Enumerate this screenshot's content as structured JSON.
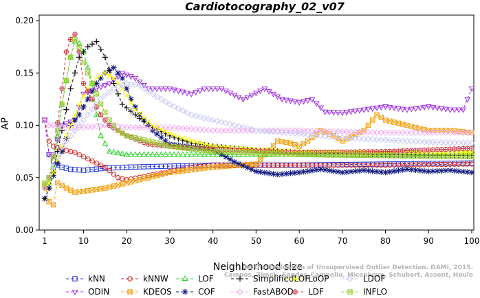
{
  "chart_data": {
    "type": "line",
    "title": "Cardiotocography_02_v07",
    "xlabel": "Neighborhood size",
    "ylabel": "AP",
    "xlim": [
      1,
      100
    ],
    "ylim": [
      0,
      0.2
    ],
    "xticks": [
      1,
      10,
      20,
      30,
      40,
      50,
      60,
      70,
      80,
      90,
      100
    ],
    "yticks": [
      0.0,
      0.05,
      0.1,
      0.15,
      0.2
    ],
    "ytick_labels": [
      "0.00",
      "0.05",
      "0.10",
      "0.15",
      "0.20"
    ],
    "grid": false,
    "legend_position": "bottom",
    "watermark": [
      "Campos, Zimek, Sander, Campello, Micenkova, Schubert, Assent, Houle",
      "On the Evaluation of Unsupervised Outlier Detection. DAMI, 2015."
    ],
    "series": [
      {
        "name": "kNN",
        "color": "#1f35d6",
        "marker": "square",
        "points": [
          [
            1,
            0.105
          ],
          [
            2,
            0.072
          ],
          [
            3,
            0.066
          ],
          [
            4,
            0.062
          ],
          [
            5,
            0.06
          ],
          [
            7,
            0.058
          ],
          [
            10,
            0.057
          ],
          [
            15,
            0.059
          ],
          [
            20,
            0.06
          ],
          [
            30,
            0.061
          ],
          [
            40,
            0.062
          ],
          [
            60,
            0.062
          ],
          [
            80,
            0.063
          ],
          [
            100,
            0.064
          ]
        ]
      },
      {
        "name": "ODIN",
        "color": "#9c2de0",
        "marker": "triangle-down",
        "points": [
          [
            1,
            0.105
          ],
          [
            2,
            0.072
          ],
          [
            3,
            0.072
          ],
          [
            5,
            0.1
          ],
          [
            8,
            0.105
          ],
          [
            10,
            0.13
          ],
          [
            13,
            0.135
          ],
          [
            16,
            0.14
          ],
          [
            19,
            0.15
          ],
          [
            22,
            0.145
          ],
          [
            25,
            0.135
          ],
          [
            30,
            0.135
          ],
          [
            35,
            0.13
          ],
          [
            38,
            0.135
          ],
          [
            42,
            0.135
          ],
          [
            47,
            0.125
          ],
          [
            52,
            0.135
          ],
          [
            56,
            0.125
          ],
          [
            60,
            0.122
          ],
          [
            63,
            0.125
          ],
          [
            66,
            0.113
          ],
          [
            70,
            0.112
          ],
          [
            75,
            0.115
          ],
          [
            80,
            0.118
          ],
          [
            85,
            0.115
          ],
          [
            90,
            0.118
          ],
          [
            95,
            0.115
          ],
          [
            98,
            0.115
          ],
          [
            100,
            0.135
          ]
        ]
      },
      {
        "name": "kNNW",
        "color": "#d42020",
        "marker": "circle",
        "points": [
          [
            1,
            0.105
          ],
          [
            2,
            0.085
          ],
          [
            3,
            0.08
          ],
          [
            5,
            0.077
          ],
          [
            8,
            0.074
          ],
          [
            10,
            0.07
          ],
          [
            15,
            0.06
          ],
          [
            18,
            0.05
          ],
          [
            20,
            0.048
          ],
          [
            25,
            0.052
          ],
          [
            30,
            0.056
          ],
          [
            35,
            0.06
          ],
          [
            40,
            0.062
          ],
          [
            60,
            0.062
          ],
          [
            80,
            0.062
          ],
          [
            100,
            0.063
          ]
        ]
      },
      {
        "name": "KDEOS",
        "color": "#f0a010",
        "marker": "square-x",
        "points": [
          [
            1,
            0.043
          ],
          [
            2,
            0.027
          ],
          [
            3,
            0.024
          ],
          [
            4,
            0.045
          ],
          [
            6,
            0.04
          ],
          [
            8,
            0.036
          ],
          [
            10,
            0.037
          ],
          [
            15,
            0.04
          ],
          [
            20,
            0.045
          ],
          [
            30,
            0.055
          ],
          [
            40,
            0.06
          ],
          [
            50,
            0.063
          ],
          [
            55,
            0.085
          ],
          [
            58,
            0.083
          ],
          [
            60,
            0.08
          ],
          [
            62,
            0.085
          ],
          [
            65,
            0.095
          ],
          [
            68,
            0.09
          ],
          [
            70,
            0.085
          ],
          [
            75,
            0.095
          ],
          [
            78,
            0.11
          ],
          [
            80,
            0.105
          ],
          [
            85,
            0.1
          ],
          [
            90,
            0.095
          ],
          [
            95,
            0.095
          ],
          [
            100,
            0.093
          ]
        ]
      },
      {
        "name": "LOF",
        "color": "#2fd02f",
        "marker": "triangle-up",
        "points": [
          [
            1,
            0.043
          ],
          [
            2,
            0.045
          ],
          [
            3,
            0.06
          ],
          [
            5,
            0.12
          ],
          [
            7,
            0.165
          ],
          [
            8,
            0.18
          ],
          [
            9,
            0.178
          ],
          [
            10,
            0.17
          ],
          [
            11,
            0.155
          ],
          [
            12,
            0.14
          ],
          [
            13,
            0.11
          ],
          [
            14,
            0.09
          ],
          [
            16,
            0.075
          ],
          [
            20,
            0.072
          ],
          [
            30,
            0.072
          ],
          [
            40,
            0.072
          ],
          [
            60,
            0.072
          ],
          [
            80,
            0.072
          ],
          [
            100,
            0.073
          ]
        ]
      },
      {
        "name": "COF",
        "color": "#101a80",
        "marker": "asterisk",
        "points": [
          [
            1,
            0.03
          ],
          [
            2,
            0.04
          ],
          [
            3,
            0.052
          ],
          [
            5,
            0.075
          ],
          [
            7,
            0.1
          ],
          [
            9,
            0.11
          ],
          [
            11,
            0.125
          ],
          [
            13,
            0.14
          ],
          [
            15,
            0.15
          ],
          [
            17,
            0.155
          ],
          [
            19,
            0.145
          ],
          [
            21,
            0.125
          ],
          [
            23,
            0.11
          ],
          [
            26,
            0.095
          ],
          [
            30,
            0.082
          ],
          [
            35,
            0.079
          ],
          [
            40,
            0.077
          ],
          [
            45,
            0.065
          ],
          [
            50,
            0.056
          ],
          [
            55,
            0.053
          ],
          [
            60,
            0.055
          ],
          [
            65,
            0.058
          ],
          [
            70,
            0.055
          ],
          [
            75,
            0.057
          ],
          [
            80,
            0.055
          ],
          [
            85,
            0.058
          ],
          [
            90,
            0.056
          ],
          [
            95,
            0.057
          ],
          [
            100,
            0.055
          ]
        ]
      },
      {
        "name": "SimplifiedLOF",
        "color": "#101010",
        "marker": "plus",
        "points": [
          [
            1,
            0.03
          ],
          [
            2,
            0.04
          ],
          [
            3,
            0.055
          ],
          [
            5,
            0.095
          ],
          [
            7,
            0.135
          ],
          [
            9,
            0.165
          ],
          [
            11,
            0.175
          ],
          [
            13,
            0.18
          ],
          [
            15,
            0.165
          ],
          [
            17,
            0.14
          ],
          [
            19,
            0.12
          ],
          [
            22,
            0.11
          ],
          [
            25,
            0.1
          ],
          [
            30,
            0.09
          ],
          [
            35,
            0.083
          ],
          [
            40,
            0.08
          ],
          [
            45,
            0.078
          ],
          [
            50,
            0.076
          ],
          [
            60,
            0.074
          ],
          [
            80,
            0.072
          ],
          [
            100,
            0.071
          ]
        ]
      },
      {
        "name": "FastABOD",
        "color": "#f4a8f4",
        "marker": "diamond",
        "points": [
          [
            1,
            0.105
          ],
          [
            2,
            0.1
          ],
          [
            3,
            0.1
          ],
          [
            6,
            0.098
          ],
          [
            10,
            0.098
          ],
          [
            15,
            0.1
          ],
          [
            20,
            0.098
          ],
          [
            30,
            0.098
          ],
          [
            40,
            0.095
          ],
          [
            60,
            0.095
          ],
          [
            80,
            0.093
          ],
          [
            100,
            0.093
          ]
        ]
      },
      {
        "name": "LoOP",
        "color": "#ffff00",
        "marker": "x",
        "points": [
          [
            1,
            0.04
          ],
          [
            2,
            0.045
          ],
          [
            3,
            0.055
          ],
          [
            5,
            0.08
          ],
          [
            7,
            0.1
          ],
          [
            9,
            0.12
          ],
          [
            11,
            0.135
          ],
          [
            13,
            0.145
          ],
          [
            15,
            0.15
          ],
          [
            17,
            0.145
          ],
          [
            19,
            0.135
          ],
          [
            22,
            0.115
          ],
          [
            26,
            0.1
          ],
          [
            30,
            0.092
          ],
          [
            35,
            0.085
          ],
          [
            40,
            0.08
          ],
          [
            50,
            0.077
          ],
          [
            60,
            0.075
          ],
          [
            80,
            0.074
          ],
          [
            100,
            0.074
          ]
        ]
      },
      {
        "name": "LDF",
        "color": "#c83a4a",
        "marker": "circle-plus",
        "points": [
          [
            1,
            0.04
          ],
          [
            2,
            0.05
          ],
          [
            3,
            0.07
          ],
          [
            5,
            0.135
          ],
          [
            6,
            0.17
          ],
          [
            7,
            0.182
          ],
          [
            8,
            0.187
          ],
          [
            9,
            0.17
          ],
          [
            10,
            0.14
          ],
          [
            12,
            0.125
          ],
          [
            14,
            0.11
          ],
          [
            16,
            0.1
          ],
          [
            20,
            0.09
          ],
          [
            25,
            0.082
          ],
          [
            30,
            0.08
          ],
          [
            40,
            0.077
          ],
          [
            60,
            0.074
          ],
          [
            80,
            0.075
          ],
          [
            100,
            0.078
          ]
        ]
      },
      {
        "name": "LDOF",
        "color": "#c8c8f4",
        "marker": "diamond",
        "points": [
          [
            1,
            0.04
          ],
          [
            2,
            0.05
          ],
          [
            3,
            0.06
          ],
          [
            5,
            0.08
          ],
          [
            8,
            0.095
          ],
          [
            11,
            0.11
          ],
          [
            14,
            0.125
          ],
          [
            17,
            0.135
          ],
          [
            20,
            0.14
          ],
          [
            23,
            0.138
          ],
          [
            26,
            0.13
          ],
          [
            30,
            0.12
          ],
          [
            35,
            0.11
          ],
          [
            40,
            0.105
          ],
          [
            45,
            0.1
          ],
          [
            50,
            0.095
          ],
          [
            60,
            0.092
          ],
          [
            70,
            0.088
          ],
          [
            80,
            0.086
          ],
          [
            90,
            0.084
          ],
          [
            100,
            0.083
          ]
        ]
      },
      {
        "name": "INFLO",
        "color": "#9acd32",
        "marker": "square-x",
        "points": [
          [
            1,
            0.045
          ],
          [
            2,
            0.05
          ],
          [
            3,
            0.07
          ],
          [
            5,
            0.12
          ],
          [
            7,
            0.165
          ],
          [
            8,
            0.182
          ],
          [
            9,
            0.175
          ],
          [
            10,
            0.16
          ],
          [
            12,
            0.14
          ],
          [
            14,
            0.12
          ],
          [
            16,
            0.105
          ],
          [
            18,
            0.095
          ],
          [
            20,
            0.09
          ],
          [
            25,
            0.085
          ],
          [
            30,
            0.08
          ],
          [
            40,
            0.075
          ],
          [
            60,
            0.072
          ],
          [
            80,
            0.071
          ],
          [
            100,
            0.07
          ]
        ]
      }
    ]
  }
}
